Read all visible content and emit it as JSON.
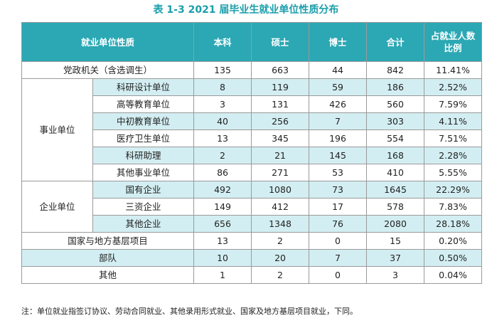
{
  "title": "表 1-3   2021 届毕业生就业单位性质分布",
  "headers": [
    "就业单位性质",
    "本科",
    "硕士",
    "博士",
    "合计",
    "占就业人数比例"
  ],
  "header_ratio_lines": [
    "占就业人数",
    "比例"
  ],
  "rows": [
    {
      "category": "党政机关（含选调生）",
      "values": [
        "135",
        "663",
        "44",
        "842",
        "11.41%"
      ]
    },
    {
      "category": "事业单位",
      "subs": [
        {
          "name": "科研设计单位",
          "values": [
            "8",
            "119",
            "59",
            "186",
            "2.52%"
          ]
        },
        {
          "name": "高等教育单位",
          "values": [
            "3",
            "131",
            "426",
            "560",
            "7.59%"
          ]
        },
        {
          "name": "中初教育单位",
          "values": [
            "40",
            "256",
            "7",
            "303",
            "4.11%"
          ]
        },
        {
          "name": "医疗卫生单位",
          "values": [
            "13",
            "345",
            "196",
            "554",
            "7.51%"
          ]
        },
        {
          "name": "科研助理",
          "values": [
            "2",
            "21",
            "145",
            "168",
            "2.28%"
          ]
        },
        {
          "name": "其他事业单位",
          "values": [
            "86",
            "271",
            "53",
            "410",
            "5.55%"
          ]
        }
      ]
    },
    {
      "category": "企业单位",
      "subs": [
        {
          "name": "国有企业",
          "values": [
            "492",
            "1080",
            "73",
            "1645",
            "22.29%"
          ]
        },
        {
          "name": "三资企业",
          "values": [
            "149",
            "412",
            "17",
            "578",
            "7.83%"
          ]
        },
        {
          "name": "其他企业",
          "values": [
            "656",
            "1348",
            "76",
            "2080",
            "28.18%"
          ]
        }
      ]
    },
    {
      "category": "国家与地方基层项目",
      "values": [
        "13",
        "2",
        "0",
        "15",
        "0.20%"
      ]
    },
    {
      "category": "部队",
      "values": [
        "10",
        "20",
        "7",
        "37",
        "0.50%"
      ]
    },
    {
      "category": "其他",
      "values": [
        "1",
        "2",
        "0",
        "3",
        "0.04%"
      ]
    }
  ],
  "note": "注：单位就业指签订协议、劳动合同就业、其他录用形式就业、国家及地方基层项目就业，下同。",
  "colors": {
    "accent": "#1a9eaa",
    "header_bg": "#2ba8b4",
    "row_alt": "#d3eef2",
    "border": "#9a9a9a"
  }
}
